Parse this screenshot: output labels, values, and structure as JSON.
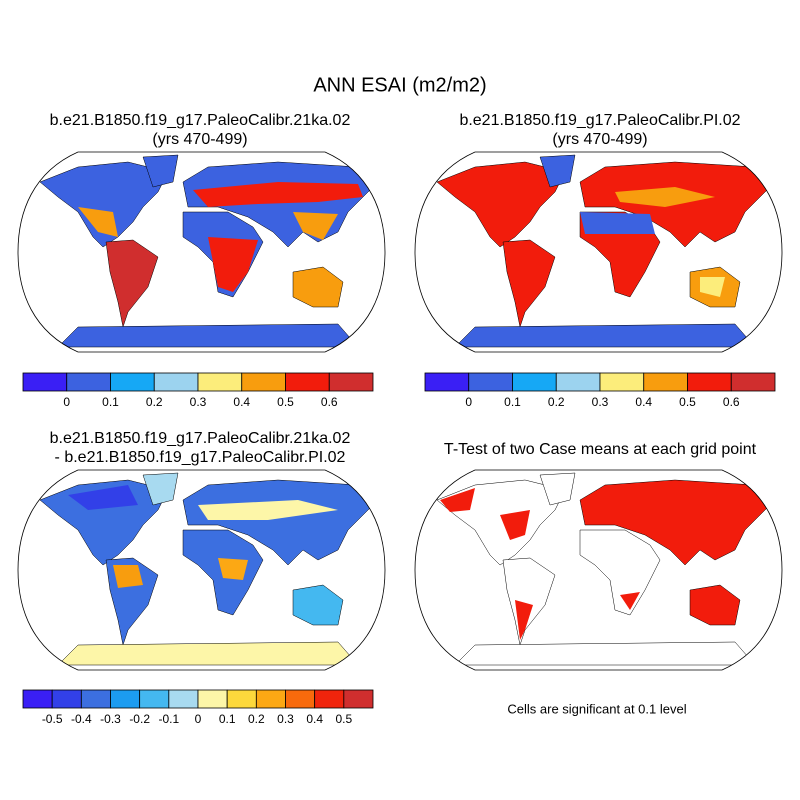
{
  "title": "ANN ESAI (m2/m2)",
  "panels": [
    {
      "title": [
        "b.e21.B1850.f19_g17.PaleoCalibr.21ka.02",
        "(yrs 470-499)"
      ]
    },
    {
      "title": [
        "b.e21.B1850.f19_g17.PaleoCalibr.PI.02",
        "(yrs 470-499)"
      ]
    },
    {
      "title": [
        "b.e21.B1850.f19_g17.PaleoCalibr.21ka.02",
        "- b.e21.B1850.f19_g17.PaleoCalibr.PI.02"
      ]
    },
    {
      "title": [
        "T-Test of two Case means at each grid point"
      ],
      "note": "Cells are significant at 0.1 level"
    }
  ],
  "colorbars": [
    {
      "colors": [
        "#3a1ff5",
        "#3c62e0",
        "#16a8f5",
        "#9cd3ef",
        "#fced7b",
        "#f89d0e",
        "#f21c0c",
        "#d02e2e"
      ],
      "labels": [
        0,
        0.1,
        0.2,
        0.3,
        0.4,
        0.5,
        0.6
      ]
    },
    {
      "colors": [
        "#3a1ff5",
        "#3c62e0",
        "#16a8f5",
        "#9cd3ef",
        "#fced7b",
        "#f89d0e",
        "#f21c0c",
        "#d02e2e"
      ],
      "labels": [
        0,
        0.1,
        0.2,
        0.3,
        0.4,
        0.5,
        0.6
      ]
    },
    {
      "colors": [
        "#3a1ff5",
        "#3240e8",
        "#3c6fe0",
        "#1c9cf0",
        "#44b8f0",
        "#a8daf0",
        "#fdf6a8",
        "#fcd83c",
        "#fca814",
        "#f86a0c",
        "#f0240c",
        "#d02e2e"
      ],
      "labels": [
        -0.5,
        -0.4,
        -0.3,
        -0.2,
        -0.1,
        0,
        0.1,
        0.2,
        0.3,
        0.4,
        0.5
      ]
    }
  ]
}
